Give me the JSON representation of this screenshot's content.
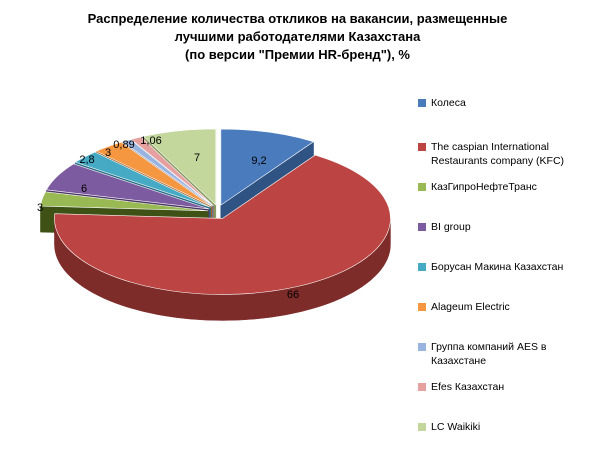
{
  "chart_data": {
    "type": "pie",
    "style": "3d-exploded",
    "title_lines": [
      "Распределение количества откликов на вакансии, размещенные",
      "лучшими работодателями Казахстана",
      "(по версии \"Премии HR-бренд\"), %"
    ],
    "legend_position": "right",
    "slices": [
      {
        "label": "Колеса",
        "value": 9.2,
        "value_label": "9,2",
        "color": "#4a7bbd",
        "side_color": "#2f5484"
      },
      {
        "label": "The caspian International Restaurants company (KFC)",
        "value": 66,
        "value_label": "66",
        "color": "#bc4543",
        "side_color": "#7e2c2a"
      },
      {
        "label": "КазГипроНефтеТранс",
        "value": 3,
        "value_label": "3",
        "color": "#98b954",
        "side_color": "#3f5216"
      },
      {
        "label": "BI group",
        "value": 6,
        "value_label": "6",
        "color": "#7c5ba1",
        "side_color": "#4e3669"
      },
      {
        "label": "Борусан Макина Казахстан",
        "value": 2.8,
        "value_label": "2,8",
        "color": "#46aac5",
        "side_color": "#2a7186"
      },
      {
        "label": "Alageum Electric",
        "value": 3,
        "value_label": "3",
        "color": "#f59640",
        "side_color": "#a85e1c"
      },
      {
        "label": "Группа компаний AES в Казахстане",
        "value": 0.89,
        "value_label": "0,89",
        "color": "#9ab4e0",
        "side_color": "#637aa6"
      },
      {
        "label": "Efes Казахстан",
        "value": 1.06,
        "value_label": "1,06",
        "color": "#e6a0a0",
        "side_color": "#a86868"
      },
      {
        "label": "LC Waikiki",
        "value": 7,
        "value_label": "7",
        "color": "#c3d69b",
        "side_color": "#879a60"
      }
    ]
  }
}
